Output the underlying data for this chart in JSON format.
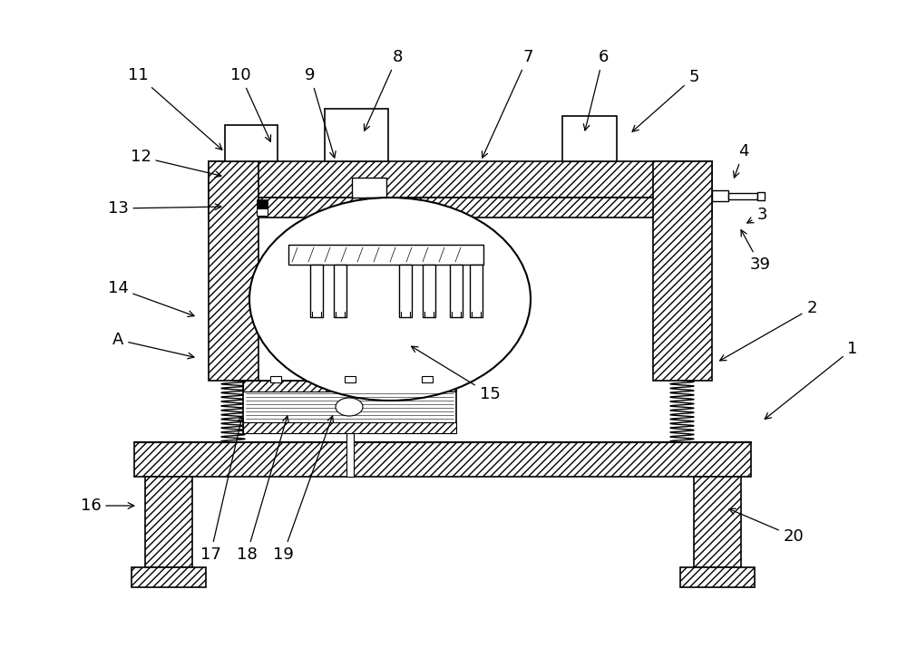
{
  "bg_color": "#ffffff",
  "figsize": [
    10.0,
    7.36
  ],
  "dpi": 100,
  "labels": [
    [
      "1",
      940,
      385,
      840,
      465
    ],
    [
      "2",
      895,
      340,
      790,
      400
    ],
    [
      "3",
      840,
      237,
      820,
      248
    ],
    [
      "4",
      820,
      167,
      808,
      200
    ],
    [
      "5",
      765,
      85,
      694,
      148
    ],
    [
      "6",
      665,
      63,
      644,
      148
    ],
    [
      "7",
      582,
      63,
      530,
      178
    ],
    [
      "8",
      438,
      63,
      400,
      148
    ],
    [
      "9",
      342,
      83,
      370,
      178
    ],
    [
      "10",
      265,
      83,
      300,
      160
    ],
    [
      "11",
      152,
      83,
      248,
      168
    ],
    [
      "12",
      155,
      173,
      248,
      195
    ],
    [
      "13",
      130,
      230,
      248,
      228
    ],
    [
      "14",
      130,
      318,
      218,
      350
    ],
    [
      "A",
      130,
      375,
      218,
      395
    ],
    [
      "15",
      540,
      435,
      450,
      380
    ],
    [
      "16",
      100,
      558,
      152,
      558
    ],
    [
      "17",
      232,
      612,
      268,
      455
    ],
    [
      "18",
      272,
      612,
      318,
      455
    ],
    [
      "19",
      312,
      612,
      368,
      455
    ],
    [
      "20",
      875,
      592,
      800,
      560
    ],
    [
      "39",
      838,
      292,
      815,
      250
    ]
  ]
}
